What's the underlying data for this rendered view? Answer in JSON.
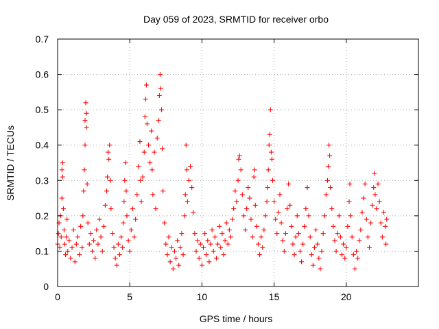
{
  "chart_data": {
    "type": "scatter",
    "title": "Day 059 of 2023, SRMTID for receiver orbo",
    "xlabel": "GPS time / hours",
    "ylabel": "SRMTID / TECUs",
    "xlim": [
      0,
      25
    ],
    "ylim": [
      0,
      0.7
    ],
    "x_ticks": [
      0,
      5,
      10,
      15,
      20
    ],
    "y_ticks": [
      0,
      0.1,
      0.2,
      0.3,
      0.4,
      0.5,
      0.6,
      0.7
    ],
    "x_tick_labels": [
      "0",
      "5",
      "10",
      "15",
      "20"
    ],
    "y_tick_labels": [
      "0",
      "0.1",
      "0.2",
      "0.3",
      "0.4",
      "0.5",
      "0.6",
      "0.7"
    ],
    "grid": true,
    "marker": "plus",
    "marker_color": "#ff0000",
    "series": [
      {
        "name": "SRMTID",
        "points": [
          [
            0.0,
            0.12
          ],
          [
            0.05,
            0.15
          ],
          [
            0.1,
            0.18
          ],
          [
            0.15,
            0.11
          ],
          [
            0.2,
            0.2
          ],
          [
            0.25,
            0.14
          ],
          [
            0.3,
            0.25
          ],
          [
            0.3,
            0.33
          ],
          [
            0.35,
            0.35
          ],
          [
            0.35,
            0.31
          ],
          [
            0.4,
            0.22
          ],
          [
            0.45,
            0.16
          ],
          [
            0.5,
            0.12
          ],
          [
            0.55,
            0.09
          ],
          [
            0.6,
            0.14
          ],
          [
            0.65,
            0.19
          ],
          [
            0.7,
            0.1
          ],
          [
            0.8,
            0.13
          ],
          [
            0.9,
            0.08
          ],
          [
            1.0,
            0.11
          ],
          [
            1.1,
            0.16
          ],
          [
            1.2,
            0.07
          ],
          [
            1.3,
            0.12
          ],
          [
            1.4,
            0.14
          ],
          [
            1.5,
            0.09
          ],
          [
            1.6,
            0.17
          ],
          [
            1.7,
            0.11
          ],
          [
            1.75,
            0.2
          ],
          [
            1.8,
            0.27
          ],
          [
            1.85,
            0.33
          ],
          [
            1.9,
            0.4
          ],
          [
            1.9,
            0.47
          ],
          [
            1.95,
            0.52
          ],
          [
            2.0,
            0.49
          ],
          [
            2.0,
            0.45
          ],
          [
            2.05,
            0.29
          ],
          [
            2.1,
            0.18
          ],
          [
            2.2,
            0.12
          ],
          [
            2.3,
            0.15
          ],
          [
            2.4,
            0.1
          ],
          [
            2.5,
            0.13
          ],
          [
            2.6,
            0.08
          ],
          [
            2.7,
            0.16
          ],
          [
            2.8,
            0.12
          ],
          [
            2.9,
            0.19
          ],
          [
            3.0,
            0.14
          ],
          [
            3.1,
            0.1
          ],
          [
            3.2,
            0.17
          ],
          [
            3.3,
            0.23
          ],
          [
            3.4,
            0.27
          ],
          [
            3.45,
            0.31
          ],
          [
            3.5,
            0.38
          ],
          [
            3.55,
            0.36
          ],
          [
            3.6,
            0.4
          ],
          [
            3.65,
            0.3
          ],
          [
            3.7,
            0.22
          ],
          [
            3.8,
            0.15
          ],
          [
            3.9,
            0.11
          ],
          [
            4.0,
            0.08
          ],
          [
            4.1,
            0.06
          ],
          [
            4.2,
            0.12
          ],
          [
            4.3,
            0.09
          ],
          [
            4.4,
            0.14
          ],
          [
            4.5,
            0.11
          ],
          [
            4.55,
            0.18
          ],
          [
            4.6,
            0.24
          ],
          [
            4.65,
            0.3
          ],
          [
            4.7,
            0.35
          ],
          [
            4.75,
            0.27
          ],
          [
            4.8,
            0.2
          ],
          [
            4.9,
            0.13
          ],
          [
            5.0,
            0.1
          ],
          [
            5.1,
            0.16
          ],
          [
            5.2,
            0.22
          ],
          [
            5.3,
            0.14
          ],
          [
            5.4,
            0.19
          ],
          [
            5.5,
            0.26
          ],
          [
            5.6,
            0.34
          ],
          [
            5.7,
            0.41
          ],
          [
            5.75,
            0.3
          ],
          [
            5.8,
            0.24
          ],
          [
            5.9,
            0.31
          ],
          [
            6.0,
            0.38
          ],
          [
            6.05,
            0.48
          ],
          [
            6.1,
            0.53
          ],
          [
            6.15,
            0.57
          ],
          [
            6.2,
            0.46
          ],
          [
            6.3,
            0.4
          ],
          [
            6.4,
            0.35
          ],
          [
            6.5,
            0.44
          ],
          [
            6.55,
            0.33
          ],
          [
            6.6,
            0.26
          ],
          [
            6.7,
            0.38
          ],
          [
            6.8,
            0.22
          ],
          [
            6.9,
            0.42
          ],
          [
            7.0,
            0.47
          ],
          [
            7.05,
            0.54
          ],
          [
            7.1,
            0.6
          ],
          [
            7.15,
            0.56
          ],
          [
            7.2,
            0.5
          ],
          [
            7.25,
            0.39
          ],
          [
            7.3,
            0.27
          ],
          [
            7.4,
            0.18
          ],
          [
            7.5,
            0.12
          ],
          [
            7.6,
            0.09
          ],
          [
            7.7,
            0.14
          ],
          [
            7.8,
            0.07
          ],
          [
            7.9,
            0.11
          ],
          [
            8.0,
            0.05
          ],
          [
            8.1,
            0.1
          ],
          [
            8.2,
            0.08
          ],
          [
            8.3,
            0.13
          ],
          [
            8.4,
            0.06
          ],
          [
            8.5,
            0.11
          ],
          [
            8.6,
            0.15
          ],
          [
            8.7,
            0.09
          ],
          [
            8.8,
            0.2
          ],
          [
            8.85,
            0.26
          ],
          [
            8.9,
            0.4
          ],
          [
            8.95,
            0.33
          ],
          [
            9.0,
            0.24
          ],
          [
            9.1,
            0.3
          ],
          [
            9.2,
            0.34
          ],
          [
            9.3,
            0.28
          ],
          [
            9.4,
            0.21
          ],
          [
            9.5,
            0.15
          ],
          [
            9.6,
            0.1
          ],
          [
            9.7,
            0.13
          ],
          [
            9.8,
            0.08
          ],
          [
            9.9,
            0.12
          ],
          [
            10.0,
            0.06
          ],
          [
            10.1,
            0.11
          ],
          [
            10.2,
            0.15
          ],
          [
            10.3,
            0.09
          ],
          [
            10.4,
            0.13
          ],
          [
            10.5,
            0.07
          ],
          [
            10.6,
            0.12
          ],
          [
            10.7,
            0.16
          ],
          [
            10.8,
            0.1
          ],
          [
            10.9,
            0.14
          ],
          [
            11.0,
            0.08
          ],
          [
            11.1,
            0.12
          ],
          [
            11.2,
            0.17
          ],
          [
            11.3,
            0.11
          ],
          [
            11.4,
            0.15
          ],
          [
            11.5,
            0.09
          ],
          [
            11.6,
            0.13
          ],
          [
            11.7,
            0.18
          ],
          [
            11.8,
            0.12
          ],
          [
            11.9,
            0.16
          ],
          [
            12.0,
            0.14
          ],
          [
            12.1,
            0.19
          ],
          [
            12.2,
            0.22
          ],
          [
            12.3,
            0.27
          ],
          [
            12.4,
            0.24
          ],
          [
            12.5,
            0.3
          ],
          [
            12.55,
            0.36
          ],
          [
            12.6,
            0.37
          ],
          [
            12.7,
            0.33
          ],
          [
            12.8,
            0.26
          ],
          [
            12.9,
            0.2
          ],
          [
            13.0,
            0.16
          ],
          [
            13.1,
            0.22
          ],
          [
            13.2,
            0.28
          ],
          [
            13.3,
            0.25
          ],
          [
            13.4,
            0.19
          ],
          [
            13.5,
            0.14
          ],
          [
            13.6,
            0.31
          ],
          [
            13.65,
            0.33
          ],
          [
            13.7,
            0.23
          ],
          [
            13.8,
            0.17
          ],
          [
            13.9,
            0.12
          ],
          [
            14.0,
            0.09
          ],
          [
            14.1,
            0.14
          ],
          [
            14.2,
            0.11
          ],
          [
            14.3,
            0.16
          ],
          [
            14.4,
            0.2
          ],
          [
            14.5,
            0.24
          ],
          [
            14.55,
            0.28
          ],
          [
            14.6,
            0.33
          ],
          [
            14.65,
            0.4
          ],
          [
            14.7,
            0.43
          ],
          [
            14.75,
            0.5
          ],
          [
            14.8,
            0.38
          ],
          [
            14.85,
            0.36
          ],
          [
            14.9,
            0.3
          ],
          [
            15.0,
            0.24
          ],
          [
            15.1,
            0.19
          ],
          [
            15.2,
            0.15
          ],
          [
            15.3,
            0.21
          ],
          [
            15.4,
            0.26
          ],
          [
            15.5,
            0.18
          ],
          [
            15.6,
            0.13
          ],
          [
            15.7,
            0.1
          ],
          [
            15.8,
            0.15
          ],
          [
            15.9,
            0.22
          ],
          [
            16.0,
            0.29
          ],
          [
            16.1,
            0.23
          ],
          [
            16.2,
            0.17
          ],
          [
            16.3,
            0.12
          ],
          [
            16.4,
            0.09
          ],
          [
            16.5,
            0.14
          ],
          [
            16.6,
            0.2
          ],
          [
            16.7,
            0.15
          ],
          [
            16.8,
            0.1
          ],
          [
            16.9,
            0.07
          ],
          [
            17.0,
            0.12
          ],
          [
            17.1,
            0.17
          ],
          [
            17.2,
            0.22
          ],
          [
            17.3,
            0.28
          ],
          [
            17.4,
            0.2
          ],
          [
            17.5,
            0.14
          ],
          [
            17.6,
            0.09
          ],
          [
            17.7,
            0.06
          ],
          [
            17.8,
            0.11
          ],
          [
            17.9,
            0.16
          ],
          [
            18.0,
            0.12
          ],
          [
            18.1,
            0.08
          ],
          [
            18.2,
            0.05
          ],
          [
            18.3,
            0.1
          ],
          [
            18.4,
            0.15
          ],
          [
            18.5,
            0.2
          ],
          [
            18.6,
            0.26
          ],
          [
            18.7,
            0.3
          ],
          [
            18.75,
            0.34
          ],
          [
            18.8,
            0.4
          ],
          [
            18.85,
            0.37
          ],
          [
            18.9,
            0.28
          ],
          [
            19.0,
            0.22
          ],
          [
            19.1,
            0.17
          ],
          [
            19.2,
            0.13
          ],
          [
            19.3,
            0.1
          ],
          [
            19.4,
            0.15
          ],
          [
            19.5,
            0.2
          ],
          [
            19.6,
            0.14
          ],
          [
            19.7,
            0.09
          ],
          [
            19.8,
            0.12
          ],
          [
            19.9,
            0.08
          ],
          [
            20.0,
            0.11
          ],
          [
            20.1,
            0.17
          ],
          [
            20.2,
            0.24
          ],
          [
            20.25,
            0.29
          ],
          [
            20.3,
            0.2
          ],
          [
            20.4,
            0.14
          ],
          [
            20.5,
            0.09
          ],
          [
            20.6,
            0.05
          ],
          [
            20.7,
            0.1
          ],
          [
            20.8,
            0.08
          ],
          [
            20.9,
            0.13
          ],
          [
            21.0,
            0.16
          ],
          [
            21.1,
            0.21
          ],
          [
            21.2,
            0.25
          ],
          [
            21.3,
            0.29
          ],
          [
            21.4,
            0.19
          ],
          [
            21.5,
            0.14
          ],
          [
            21.6,
            0.11
          ],
          [
            21.7,
            0.18
          ],
          [
            21.8,
            0.23
          ],
          [
            21.9,
            0.28
          ],
          [
            21.95,
            0.32
          ],
          [
            22.0,
            0.26
          ],
          [
            22.1,
            0.22
          ],
          [
            22.2,
            0.29
          ],
          [
            22.3,
            0.24
          ],
          [
            22.4,
            0.18
          ],
          [
            22.5,
            0.14
          ],
          [
            22.6,
            0.21
          ],
          [
            22.7,
            0.17
          ],
          [
            22.75,
            0.12
          ],
          [
            22.8,
            0.19
          ]
        ]
      }
    ]
  }
}
